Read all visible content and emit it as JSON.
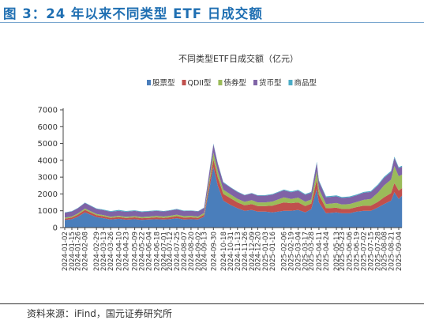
{
  "figure_title": "图 3：24 年以来不同类型 ETF 日成交额",
  "source": "资料来源：iFind，国元证券研究所",
  "chart_data": {
    "type": "area",
    "stacked": true,
    "title": "不同类型ETF日成交额（亿元）",
    "xlabel": "",
    "ylabel": "",
    "ylim": [
      0,
      7000
    ],
    "yticks": [
      0,
      1000,
      2000,
      3000,
      4000,
      5000,
      6000,
      7000
    ],
    "grid": false,
    "legend_position": "top-center",
    "x_ticks": [
      "2024-01-02",
      "2024-01-15",
      "2024-01-26",
      "2024-02-08",
      "2024-02-29",
      "2024-03-13",
      "2024-03-26",
      "2024-04-10",
      "2024-04-23",
      "2024-05-09",
      "2024-05-22",
      "2024-06-04",
      "2024-06-18",
      "2024-07-01",
      "2024-07-12",
      "2024-07-25",
      "2024-08-07",
      "2024-08-20",
      "2024-09-02",
      "2024-09-13",
      "2024-09-30",
      "2024-10-18",
      "2024-10-31",
      "2024-11-13",
      "2024-11-26",
      "2024-12-09",
      "2024-12-20",
      "2025-01-03",
      "2025-01-16",
      "2025-02-06",
      "2025-02-19",
      "2025-03-04",
      "2025-03-17",
      "2025-03-28",
      "2025-04-11",
      "2025-04-24",
      "2025-05-13",
      "2025-05-23",
      "2025-06-06",
      "2025-06-19",
      "2025-07-02",
      "2025-07-15",
      "2025-07-28",
      "2025-08-08",
      "2025-08-21",
      "2025-09-04"
    ],
    "x": [
      "2024-01-02",
      "2024-01-15",
      "2024-01-26",
      "2024-02-08",
      "2024-02-29",
      "2024-03-13",
      "2024-03-26",
      "2024-04-10",
      "2024-04-23",
      "2024-05-09",
      "2024-05-22",
      "2024-06-04",
      "2024-06-18",
      "2024-07-01",
      "2024-07-12",
      "2024-07-25",
      "2024-08-07",
      "2024-08-20",
      "2024-09-02",
      "2024-09-13",
      "2024-09-30",
      "2024-10-08",
      "2024-10-18",
      "2024-10-31",
      "2024-11-13",
      "2024-11-26",
      "2024-12-09",
      "2024-12-20",
      "2025-01-03",
      "2025-01-16",
      "2025-02-06",
      "2025-02-19",
      "2025-03-04",
      "2025-03-17",
      "2025-03-28",
      "2025-04-07",
      "2025-04-11",
      "2025-04-24",
      "2025-05-13",
      "2025-05-23",
      "2025-06-06",
      "2025-06-19",
      "2025-07-02",
      "2025-07-15",
      "2025-07-28",
      "2025-08-08",
      "2025-08-21",
      "2025-08-27",
      "2025-09-04",
      "2025-09-10"
    ],
    "series": [
      {
        "name": "股票型",
        "color": "#4a7ebb",
        "values": [
          450,
          500,
          650,
          900,
          620,
          560,
          480,
          520,
          470,
          500,
          460,
          480,
          500,
          480,
          500,
          560,
          480,
          500,
          480,
          650,
          3600,
          2500,
          1600,
          1350,
          1150,
          1000,
          1050,
          950,
          950,
          900,
          1000,
          1000,
          1050,
          900,
          1100,
          2300,
          1500,
          850,
          900,
          850,
          850,
          950,
          1000,
          1000,
          1200,
          1400,
          1600,
          2100,
          1700,
          1900
        ]
      },
      {
        "name": "QDII型",
        "color": "#c0504d",
        "values": [
          80,
          100,
          120,
          150,
          120,
          110,
          100,
          110,
          100,
          110,
          100,
          100,
          110,
          100,
          110,
          120,
          110,
          110,
          100,
          120,
          450,
          500,
          400,
          400,
          350,
          330,
          350,
          330,
          330,
          400,
          500,
          450,
          450,
          380,
          330,
          550,
          450,
          300,
          280,
          260,
          270,
          270,
          300,
          300,
          330,
          400,
          450,
          550,
          500,
          450
        ]
      },
      {
        "name": "债券型",
        "color": "#9bbb59",
        "values": [
          60,
          60,
          70,
          80,
          70,
          70,
          60,
          70,
          70,
          70,
          70,
          80,
          80,
          80,
          90,
          90,
          90,
          90,
          80,
          100,
          400,
          350,
          250,
          230,
          210,
          200,
          230,
          220,
          220,
          250,
          300,
          250,
          280,
          260,
          240,
          500,
          350,
          250,
          280,
          260,
          280,
          300,
          350,
          400,
          550,
          700,
          800,
          1000,
          850,
          800
        ]
      },
      {
        "name": "货币型",
        "color": "#7f63a6",
        "values": [
          290,
          300,
          310,
          330,
          300,
          300,
          300,
          300,
          300,
          310,
          300,
          300,
          310,
          300,
          310,
          310,
          300,
          300,
          300,
          300,
          500,
          450,
          420,
          400,
          400,
          390,
          400,
          400,
          400,
          410,
          420,
          400,
          420,
          410,
          400,
          500,
          450,
          400,
          400,
          390,
          400,
          400,
          420,
          420,
          430,
          450,
          460,
          500,
          480,
          470
        ]
      },
      {
        "name": "商品型",
        "color": "#4bacc6",
        "values": [
          20,
          20,
          20,
          25,
          25,
          30,
          40,
          50,
          45,
          40,
          35,
          30,
          30,
          25,
          25,
          30,
          30,
          25,
          20,
          20,
          50,
          50,
          40,
          30,
          30,
          25,
          25,
          25,
          30,
          35,
          40,
          45,
          45,
          45,
          50,
          70,
          60,
          55,
          55,
          55,
          50,
          50,
          50,
          50,
          55,
          60,
          60,
          70,
          60,
          60
        ]
      }
    ]
  }
}
